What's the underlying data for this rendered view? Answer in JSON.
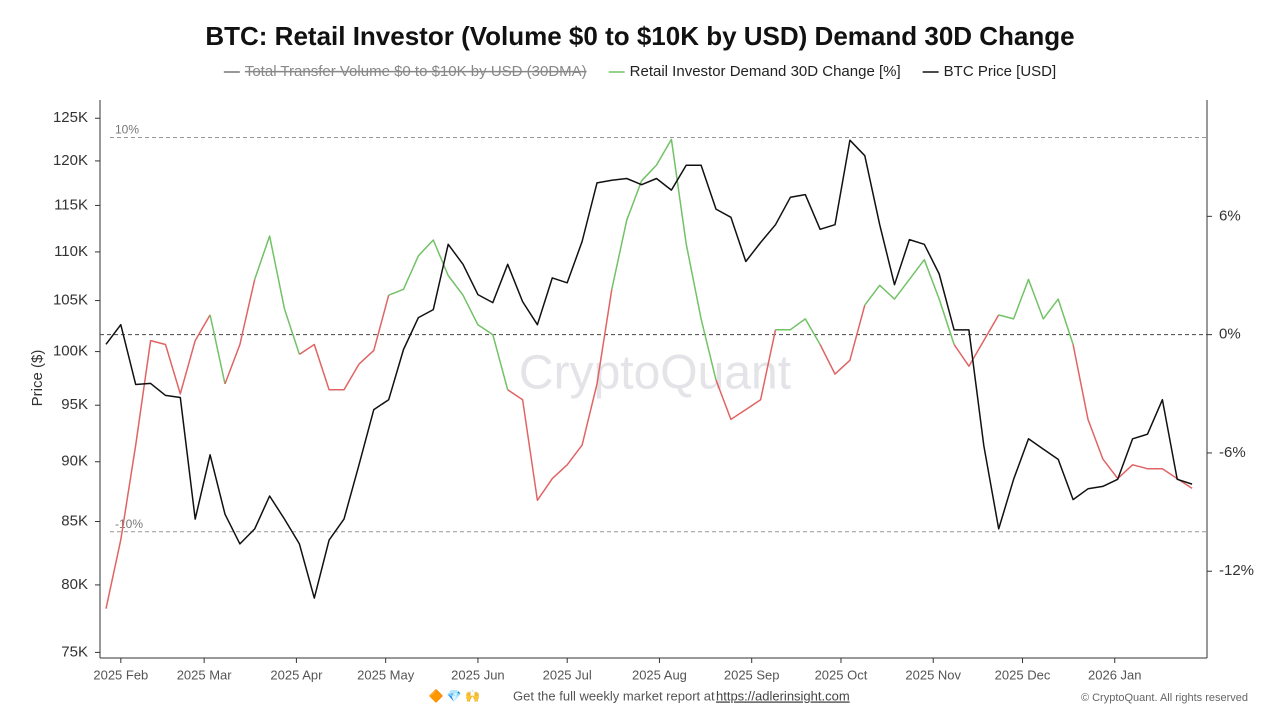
{
  "chart_data": {
    "type": "line",
    "title": "BTC: Retail Investor (Volume $0 to $10K by USD) Demand 30D Change",
    "ylabel": "Price ($)",
    "watermark": "CryptoQuant",
    "log_scale": true,
    "legend": "top",
    "x": [
      "2025-01-27",
      "2025-02-01",
      "2025-02-06",
      "2025-02-11",
      "2025-02-16",
      "2025-02-21",
      "2025-02-26",
      "2025-03-03",
      "2025-03-08",
      "2025-03-13",
      "2025-03-18",
      "2025-03-23",
      "2025-03-28",
      "2025-04-02",
      "2025-04-07",
      "2025-04-12",
      "2025-04-17",
      "2025-04-22",
      "2025-04-27",
      "2025-05-02",
      "2025-05-07",
      "2025-05-12",
      "2025-05-17",
      "2025-05-22",
      "2025-05-27",
      "2025-06-01",
      "2025-06-06",
      "2025-06-11",
      "2025-06-16",
      "2025-06-21",
      "2025-06-26",
      "2025-07-01",
      "2025-07-06",
      "2025-07-11",
      "2025-07-16",
      "2025-07-21",
      "2025-07-26",
      "2025-07-31",
      "2025-08-05",
      "2025-08-10",
      "2025-08-15",
      "2025-08-20",
      "2025-08-25",
      "2025-08-30",
      "2025-09-04",
      "2025-09-09",
      "2025-09-14",
      "2025-09-19",
      "2025-09-24",
      "2025-09-29",
      "2025-10-04",
      "2025-10-09",
      "2025-10-14",
      "2025-10-19",
      "2025-10-24",
      "2025-10-29",
      "2025-11-03",
      "2025-11-08",
      "2025-11-13",
      "2025-11-18",
      "2025-11-23",
      "2025-11-28",
      "2025-12-03",
      "2025-12-08",
      "2025-12-13",
      "2025-12-18",
      "2025-12-23",
      "2025-12-28",
      "2026-01-02",
      "2026-01-07",
      "2026-01-12",
      "2026-01-17",
      "2026-01-22",
      "2026-01-27"
    ],
    "xlim": [
      "2025-01-25",
      "2026-02-01"
    ],
    "xticks": [
      {
        "value": "2025-02-01",
        "label": "2025 Feb"
      },
      {
        "value": "2025-03-01",
        "label": "2025 Mar"
      },
      {
        "value": "2025-04-01",
        "label": "2025 Apr"
      },
      {
        "value": "2025-05-01",
        "label": "2025 May"
      },
      {
        "value": "2025-06-01",
        "label": "2025 Jun"
      },
      {
        "value": "2025-07-01",
        "label": "2025 Jul"
      },
      {
        "value": "2025-08-01",
        "label": "2025 Aug"
      },
      {
        "value": "2025-09-01",
        "label": "2025 Sep"
      },
      {
        "value": "2025-10-01",
        "label": "2025 Oct"
      },
      {
        "value": "2025-11-01",
        "label": "2025 Nov"
      },
      {
        "value": "2025-12-01",
        "label": "2025 Dec"
      },
      {
        "value": "2026-01-01",
        "label": "2026 Jan"
      }
    ],
    "ylim": [
      74600,
      127200
    ],
    "yticks": [
      {
        "value": 75000,
        "label": "75K"
      },
      {
        "value": 80000,
        "label": "80K"
      },
      {
        "value": 85000,
        "label": "85K"
      },
      {
        "value": 90000,
        "label": "90K"
      },
      {
        "value": 95000,
        "label": "95K"
      },
      {
        "value": 100000,
        "label": "100K"
      },
      {
        "value": 105000,
        "label": "105K"
      },
      {
        "value": 110000,
        "label": "110K"
      },
      {
        "value": 115000,
        "label": "115K"
      },
      {
        "value": 120000,
        "label": "120K"
      },
      {
        "value": 125000,
        "label": "125K"
      }
    ],
    "y2lim": [
      -16.4,
      11.9
    ],
    "y2ticks": [
      {
        "value": -12,
        "label": "-12%"
      },
      {
        "value": -6,
        "label": "-6%"
      },
      {
        "value": 0,
        "label": "0%"
      },
      {
        "value": 6,
        "label": "6%"
      }
    ],
    "annotations": [
      {
        "text": "10%",
        "value": 10
      },
      {
        "text": "-10%",
        "value": -10
      }
    ],
    "series": [
      {
        "name": "Total Transfer Volume $0 to $10K by USD (30DMA)",
        "color": "#777777",
        "visible": false
      },
      {
        "name": "Retail Investor Demand 30D Change [%]",
        "color": "#72c266",
        "negative_color": "#e06464",
        "axis": "y2",
        "values": [
          -13.9,
          -10.4,
          -5.6,
          -0.3,
          -0.5,
          -3.0,
          -0.3,
          1.0,
          -2.5,
          -0.5,
          2.8,
          5.0,
          1.3,
          -1.0,
          -0.5,
          -2.8,
          -2.8,
          -1.5,
          -0.8,
          2.0,
          2.3,
          4.0,
          4.8,
          3.0,
          2.0,
          0.5,
          0.0,
          -2.8,
          -3.3,
          -8.4,
          -7.3,
          -6.6,
          -5.6,
          -2.5,
          2.3,
          5.8,
          7.8,
          8.6,
          9.9,
          4.6,
          0.8,
          -2.3,
          -4.3,
          -3.8,
          -3.3,
          0.25,
          0.25,
          0.8,
          -0.5,
          -2.0,
          -1.3,
          1.5,
          2.5,
          1.8,
          2.8,
          3.8,
          1.8,
          -0.5,
          -1.6,
          -0.3,
          1.0,
          0.8,
          2.8,
          0.8,
          1.8,
          -0.5,
          -4.3,
          -6.3,
          -7.3,
          -6.6,
          -6.8,
          -6.8,
          -7.3,
          -7.8
        ]
      },
      {
        "name": "BTC Price [USD]",
        "color": "#111111",
        "values": [
          100700,
          102600,
          96900,
          97000,
          95900,
          95700,
          85200,
          90600,
          85600,
          83200,
          84400,
          87100,
          85200,
          83200,
          79000,
          83500,
          85200,
          89700,
          94600,
          95500,
          100200,
          103300,
          104100,
          110800,
          108700,
          105600,
          104800,
          108700,
          104900,
          102600,
          107300,
          106800,
          111100,
          117500,
          117800,
          118000,
          117300,
          118000,
          116700,
          119500,
          119500,
          114600,
          113700,
          109000,
          111000,
          112900,
          115900,
          116200,
          112400,
          112900,
          122400,
          120600,
          112900,
          106600,
          111300,
          110800,
          107700,
          102100,
          102100,
          91400,
          84400,
          88500,
          92000,
          91100,
          90200,
          86800,
          87700,
          87900,
          88500,
          92000,
          92400,
          95500,
          88500,
          88100
        ]
      }
    ]
  },
  "footer": {
    "icons": "🔶 💎 🙌",
    "text": "Get the full weekly market report at",
    "link": "https://adlerinsight.com",
    "copyright": "© CryptoQuant. All rights reserved"
  }
}
